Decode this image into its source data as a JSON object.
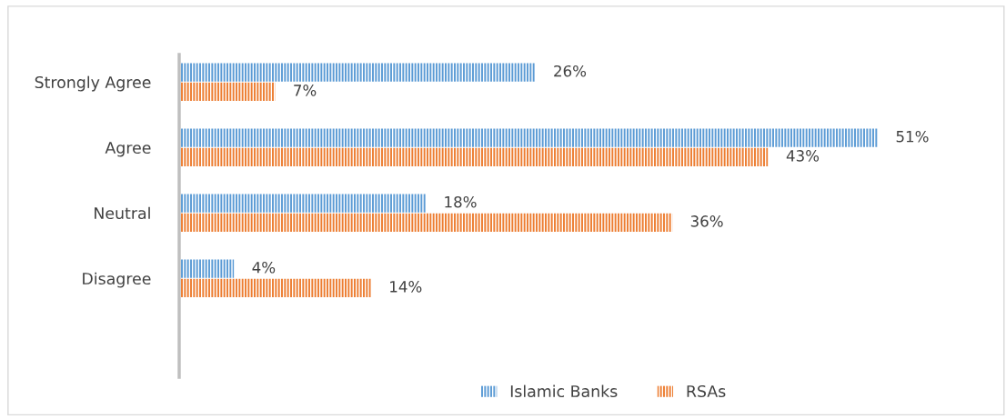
{
  "chart_data": {
    "type": "bar",
    "orientation": "horizontal",
    "categories": [
      "Strongly Agree",
      "Agree",
      "Neutral",
      "Disagree"
    ],
    "series": [
      {
        "name": "Islamic Banks",
        "color": "#5b9bd5",
        "values": [
          26,
          51,
          18,
          4
        ],
        "value_labels": [
          "26%",
          "51%",
          "18%",
          "4%"
        ]
      },
      {
        "name": "RSAs",
        "color": "#ed7d31",
        "values": [
          7,
          43,
          36,
          14
        ],
        "value_labels": [
          "7%",
          "43%",
          "36%",
          "14%"
        ]
      }
    ],
    "legend": "bottom",
    "grid": false
  }
}
